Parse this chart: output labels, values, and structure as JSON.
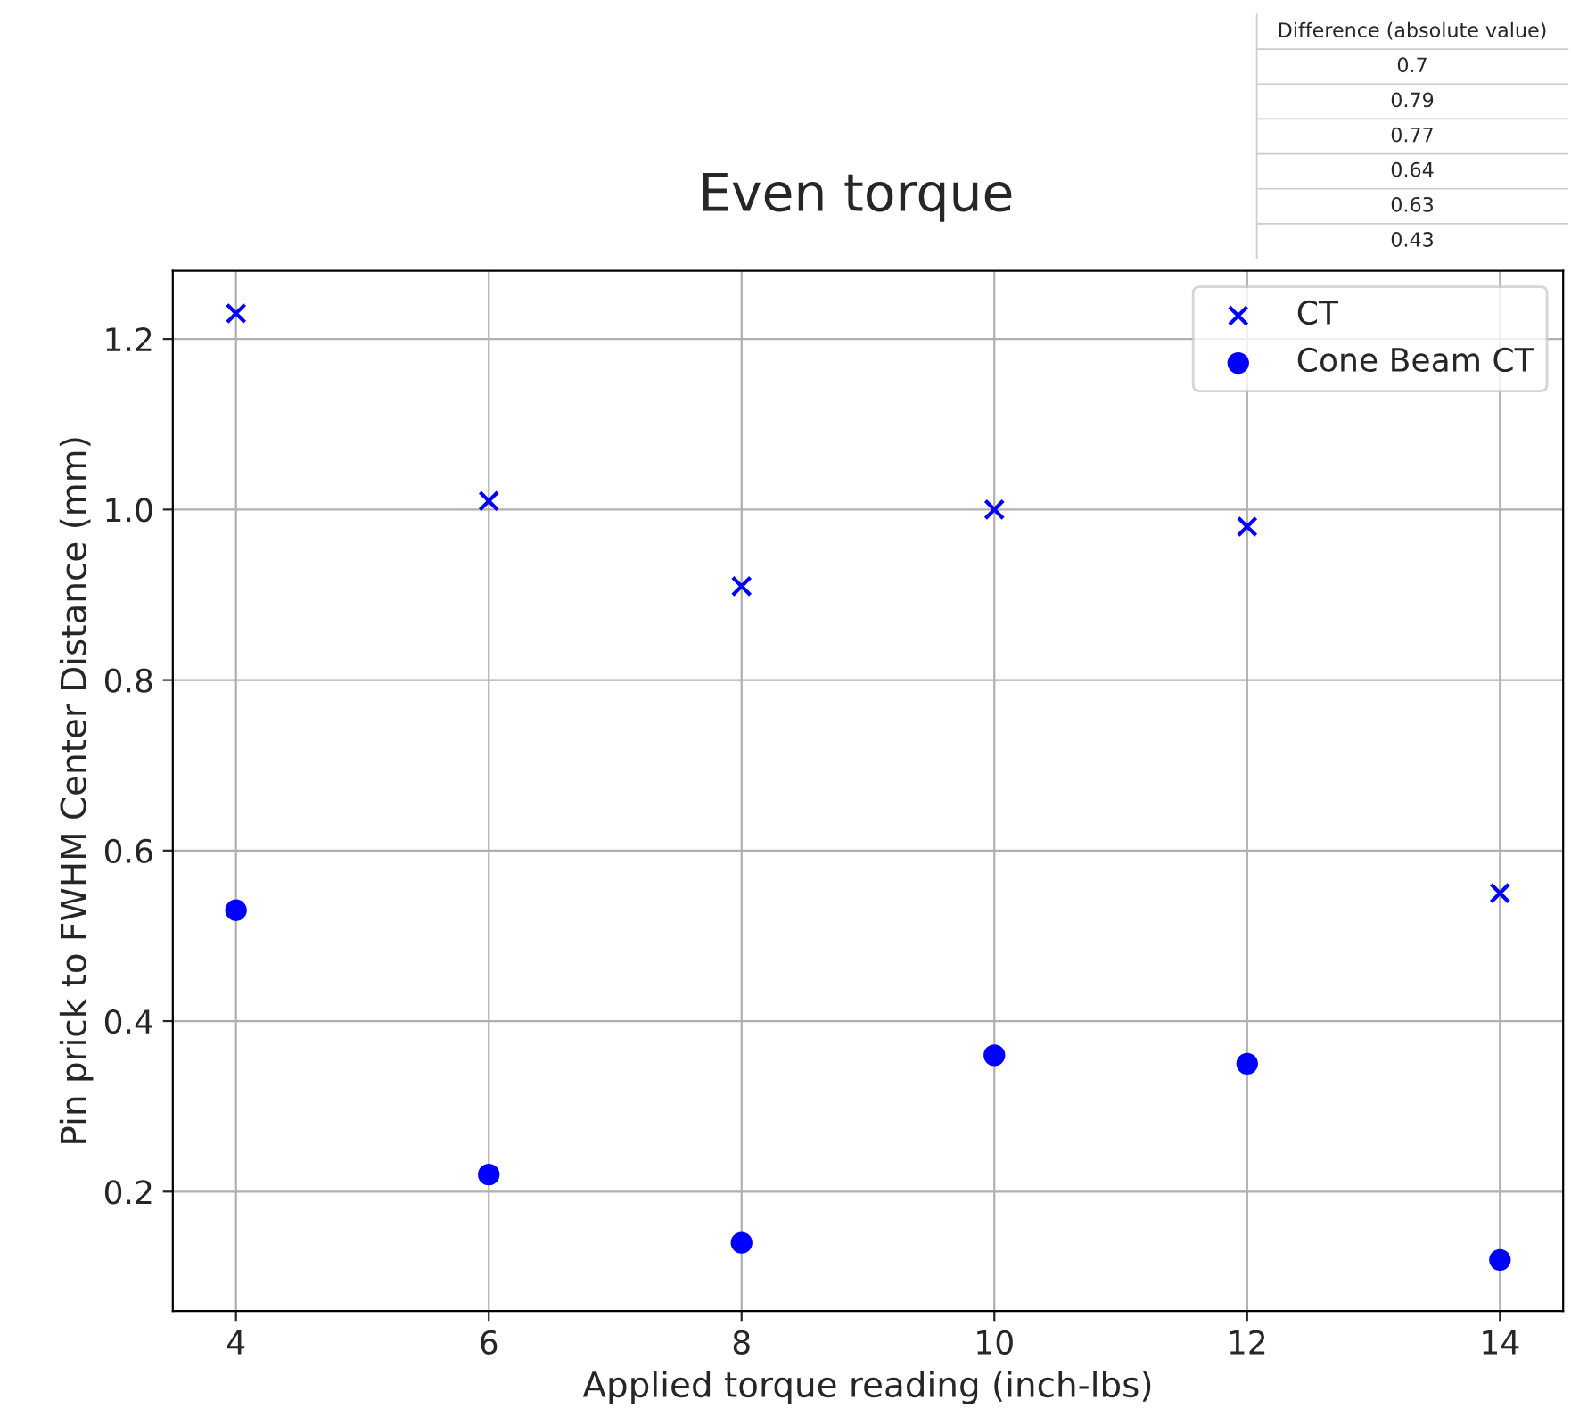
{
  "chart_data": {
    "type": "scatter",
    "title": "Even torque",
    "xlabel": "Applied torque reading (inch-lbs)",
    "ylabel": "Pin prick to FWHM Center Distance (mm)",
    "x": [
      4,
      6,
      8,
      10,
      12,
      14
    ],
    "series": [
      {
        "name": "CT",
        "color": "#0000ff",
        "marker": "cross",
        "values": [
          1.23,
          1.01,
          0.91,
          1.0,
          0.98,
          0.55
        ]
      },
      {
        "name": "Cone Beam CT",
        "color": "#0000ff",
        "marker": "circle",
        "values": [
          0.53,
          0.22,
          0.14,
          0.36,
          0.35,
          0.12
        ]
      }
    ],
    "xlim": [
      3.5,
      14.5
    ],
    "xticks": [
      4,
      6,
      8,
      10,
      12,
      14
    ],
    "ylim": [
      0.06,
      1.28
    ],
    "yticks": [
      0.2,
      0.4,
      0.6,
      0.8,
      {
        "value": 1.0,
        "label": "1.0"
      },
      1.2
    ],
    "grid": true,
    "legend": "top right",
    "annotations": [
      "Difference (absolute value)",
      "0.7",
      "0.79",
      "0.77",
      "0.64",
      "0.63",
      "0.43"
    ]
  }
}
